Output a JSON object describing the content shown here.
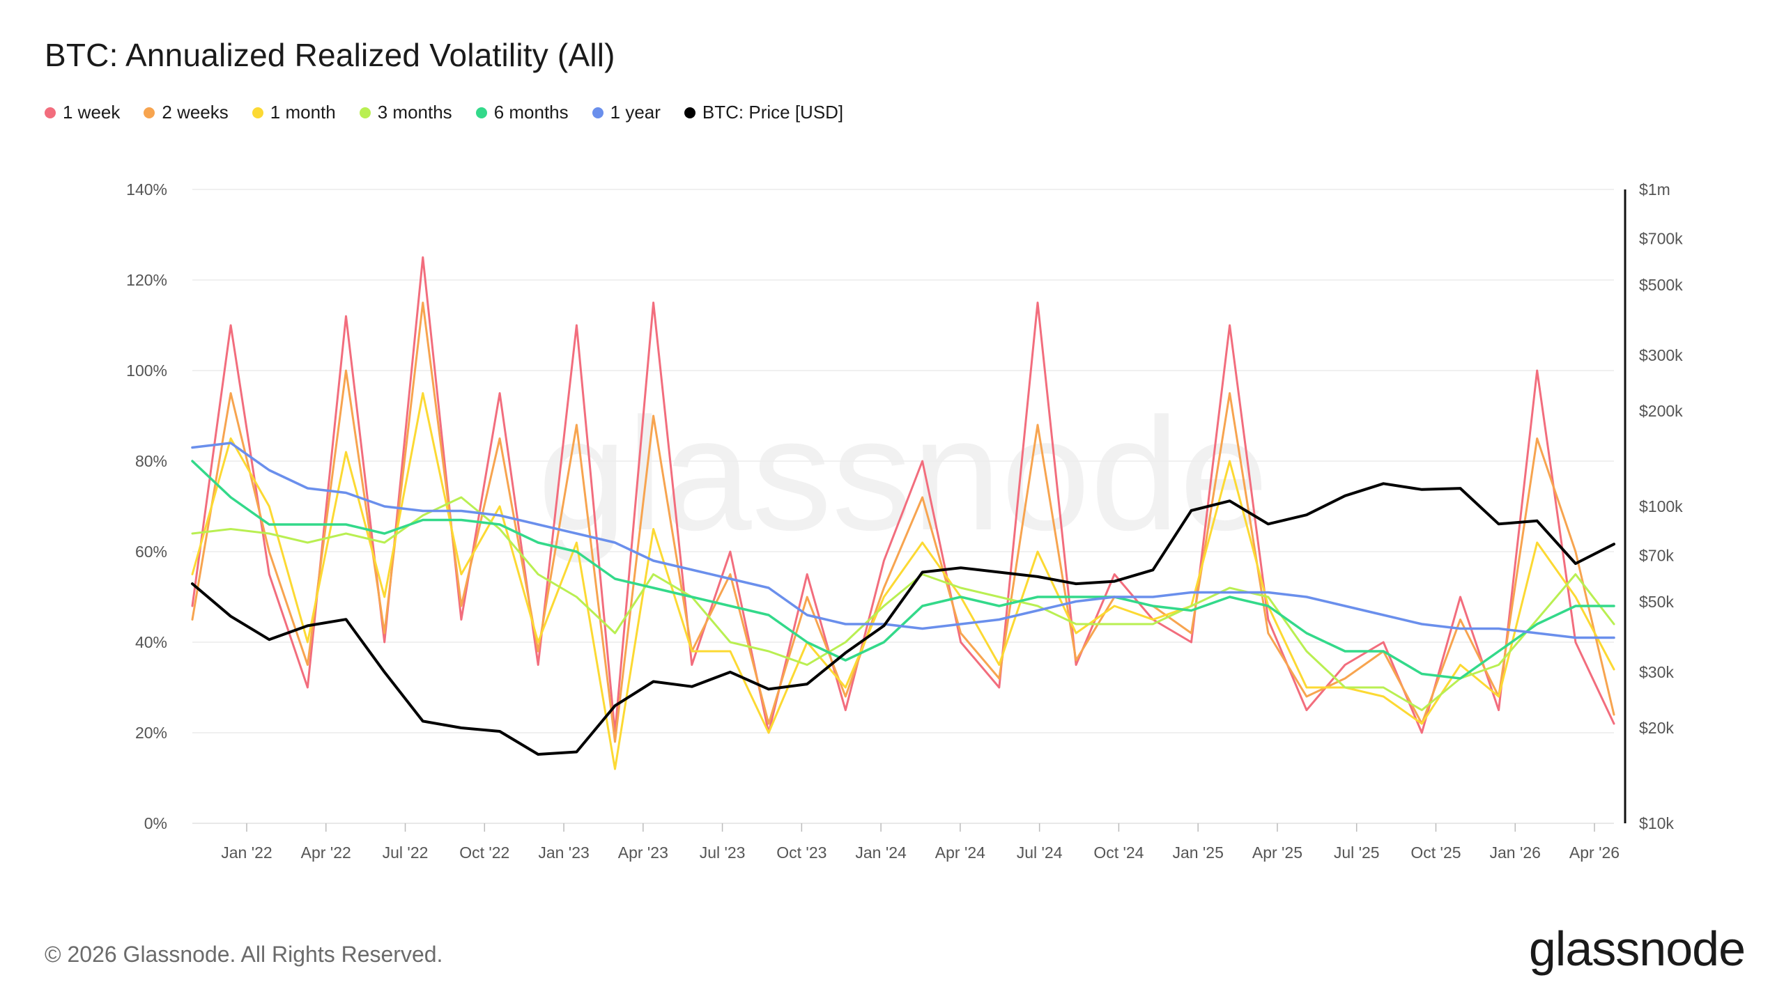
{
  "title": "BTC: Annualized Realized Volatility (All)",
  "footer": "© 2026 Glassnode. All Rights Reserved.",
  "logo": "glassnode",
  "watermark": "glassnode",
  "colors": {
    "1 week": "#f26d7d",
    "2 weeks": "#f7a44f",
    "1 month": "#fcd933",
    "3 months": "#b9ef52",
    "6 months": "#33d98a",
    "1 year": "#6a8fec",
    "BTC: Price [USD]": "#000000"
  },
  "chart_data": {
    "type": "line",
    "title": "BTC: Annualized Realized Volatility (All)",
    "x_ticks": [
      "Jan '22",
      "Apr '22",
      "Jul '22",
      "Oct '22",
      "Jan '23",
      "Apr '23",
      "Jul '23",
      "Oct '23",
      "Jan '24",
      "Apr '24",
      "Jul '24",
      "Oct '24",
      "Jan '25",
      "Apr '25",
      "Jul '25",
      "Oct '25",
      "Jan '26",
      "Apr '26"
    ],
    "x": [
      "Nov '21",
      "Jan '22",
      "Feb '22",
      "Mar '22",
      "Apr '22",
      "Jun '22",
      "Jul '22",
      "Sep '22",
      "Oct '22",
      "Nov '22",
      "Jan '23",
      "Mar '23",
      "Apr '23",
      "Jun '23",
      "Jul '23",
      "Sep '23",
      "Oct '23",
      "Dec '23",
      "Jan '24",
      "Mar '24",
      "Apr '24",
      "Jun '24",
      "Jul '24",
      "Sep '24",
      "Oct '24",
      "Dec '24",
      "Jan '25",
      "Mar '25",
      "Apr '25",
      "Jun '25",
      "Jul '25",
      "Sep '25",
      "Oct '25",
      "Dec '25",
      "Jan '26",
      "Mar '26",
      "Apr '26",
      "May '26"
    ],
    "y_left_ticks": [
      "0%",
      "20%",
      "40%",
      "60%",
      "80%",
      "100%",
      "120%",
      "140%"
    ],
    "y_left_lim": [
      0,
      140
    ],
    "y_right_ticks": [
      "$10k",
      "$20k",
      "$30k",
      "$50k",
      "$70k",
      "$100k",
      "$200k",
      "$300k",
      "$500k",
      "$700k",
      "$1m"
    ],
    "y_right_values": [
      10000,
      20000,
      30000,
      50000,
      70000,
      100000,
      200000,
      300000,
      500000,
      700000,
      1000000
    ],
    "y_right_scale": "log",
    "grid": true,
    "legend_position": "top-left",
    "series": [
      {
        "name": "1 week",
        "axis": "left",
        "values": [
          48,
          110,
          55,
          30,
          112,
          40,
          125,
          45,
          95,
          35,
          110,
          20,
          115,
          35,
          60,
          20,
          55,
          25,
          58,
          80,
          40,
          30,
          115,
          35,
          55,
          45,
          40,
          110,
          45,
          25,
          35,
          40,
          20,
          50,
          25,
          100,
          40,
          22
        ]
      },
      {
        "name": "2 weeks",
        "axis": "left",
        "values": [
          45,
          95,
          60,
          35,
          100,
          42,
          115,
          48,
          85,
          38,
          88,
          18,
          90,
          38,
          55,
          22,
          50,
          28,
          52,
          72,
          42,
          32,
          88,
          36,
          50,
          48,
          42,
          95,
          42,
          28,
          32,
          38,
          22,
          45,
          28,
          85,
          60,
          24
        ]
      },
      {
        "name": "1 month",
        "axis": "left",
        "values": [
          55,
          85,
          70,
          40,
          82,
          50,
          95,
          55,
          70,
          40,
          62,
          12,
          65,
          38,
          38,
          20,
          40,
          30,
          50,
          62,
          50,
          35,
          60,
          42,
          48,
          45,
          48,
          80,
          48,
          30,
          30,
          28,
          22,
          35,
          28,
          62,
          50,
          34
        ]
      },
      {
        "name": "3 months",
        "axis": "left",
        "values": [
          64,
          65,
          64,
          62,
          64,
          62,
          68,
          72,
          65,
          55,
          50,
          42,
          55,
          50,
          40,
          38,
          35,
          40,
          48,
          55,
          52,
          50,
          48,
          44,
          44,
          44,
          48,
          52,
          50,
          38,
          30,
          30,
          25,
          32,
          35,
          45,
          55,
          44
        ]
      },
      {
        "name": "6 months",
        "axis": "left",
        "values": [
          80,
          72,
          66,
          66,
          66,
          64,
          67,
          67,
          66,
          62,
          60,
          54,
          52,
          50,
          48,
          46,
          40,
          36,
          40,
          48,
          50,
          48,
          50,
          50,
          50,
          48,
          47,
          50,
          48,
          42,
          38,
          38,
          33,
          32,
          38,
          44,
          48,
          48
        ]
      },
      {
        "name": "1 year",
        "axis": "left",
        "values": [
          83,
          84,
          78,
          74,
          73,
          70,
          69,
          69,
          68,
          66,
          64,
          62,
          58,
          56,
          54,
          52,
          46,
          44,
          44,
          43,
          44,
          45,
          47,
          49,
          50,
          50,
          51,
          51,
          51,
          50,
          48,
          46,
          44,
          43,
          43,
          42,
          41,
          41
        ]
      },
      {
        "name": "BTC: Price [USD]",
        "axis": "right",
        "values": [
          57000,
          45000,
          38000,
          42000,
          44000,
          30000,
          21000,
          20000,
          19500,
          16500,
          16800,
          23500,
          28000,
          27000,
          30000,
          26500,
          27500,
          34500,
          42000,
          62000,
          64000,
          62000,
          60000,
          57000,
          58000,
          63000,
          97000,
          104000,
          88000,
          94000,
          108000,
          118000,
          113000,
          114000,
          88000,
          90000,
          66000,
          76000
        ]
      }
    ]
  }
}
